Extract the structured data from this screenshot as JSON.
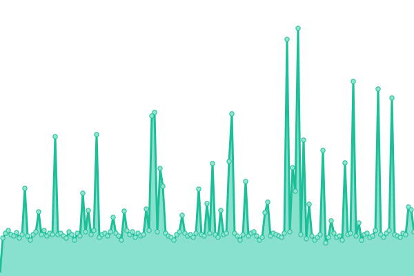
{
  "chart_data": {
    "type": "area",
    "title": "",
    "xlabel": "",
    "ylabel": "",
    "grid": false,
    "legend": "none",
    "ylim": [
      0,
      400
    ],
    "colors": {
      "line": "#1dbf98",
      "fill": "#88e0cd",
      "marker_fill": "#8fe3cf"
    },
    "x": [
      0,
      1,
      2,
      3,
      4,
      5,
      6,
      7,
      8,
      9,
      10,
      11,
      12,
      13,
      14,
      15,
      16,
      17,
      18,
      19,
      20,
      21,
      22,
      23,
      24,
      25,
      26,
      27,
      28,
      29,
      30,
      31,
      32,
      33,
      34,
      35,
      36,
      37,
      38,
      39,
      40,
      41,
      42,
      43,
      44,
      45,
      46,
      47,
      48,
      49,
      50,
      51,
      52,
      53,
      54,
      55,
      56,
      57,
      58,
      59,
      60,
      61,
      62,
      63,
      64,
      65,
      66,
      67,
      68,
      69,
      70,
      71,
      72,
      73,
      74,
      75,
      76,
      77,
      78,
      79,
      80,
      81,
      82,
      83,
      84,
      85,
      86,
      87,
      88,
      89,
      90,
      91,
      92,
      93,
      94,
      95,
      96,
      97,
      98,
      99,
      100,
      101,
      102,
      103,
      104,
      105,
      106,
      107,
      108,
      109,
      110,
      111,
      112,
      113,
      114,
      115,
      116,
      117,
      118,
      119,
      120,
      121,
      122,
      123,
      124,
      125,
      126,
      127,
      128,
      129,
      130,
      131,
      132,
      133,
      134,
      135,
      136,
      137,
      138,
      139,
      140,
      141,
      142,
      143,
      144,
      145,
      146,
      147,
      148,
      149,
      150
    ],
    "values": [
      5,
      55,
      62,
      66,
      60,
      58,
      63,
      55,
      60,
      127,
      58,
      52,
      60,
      64,
      93,
      60,
      66,
      58,
      62,
      60,
      202,
      60,
      62,
      58,
      55,
      64,
      60,
      52,
      62,
      58,
      120,
      64,
      95,
      60,
      66,
      205,
      56,
      60,
      62,
      58,
      64,
      85,
      62,
      58,
      52,
      94,
      66,
      60,
      64,
      56,
      62,
      58,
      60,
      97,
      66,
      232,
      237,
      64,
      156,
      130,
      62,
      58,
      56,
      52,
      60,
      64,
      88,
      62,
      58,
      60,
      56,
      62,
      126,
      60,
      58,
      105,
      62,
      163,
      60,
      56,
      95,
      60,
      62,
      166,
      235,
      62,
      58,
      52,
      60,
      137,
      58,
      62,
      64,
      58,
      52,
      56,
      92,
      107,
      58,
      62,
      60,
      58,
      56,
      62,
      343,
      64,
      157,
      123,
      359,
      60,
      197,
      54,
      104,
      58,
      52,
      56,
      60,
      182,
      48,
      56,
      80,
      62,
      56,
      58,
      52,
      164,
      60,
      62,
      282,
      58,
      77,
      52,
      60,
      62,
      56,
      58,
      66,
      271,
      60,
      56,
      62,
      66,
      258,
      60,
      58,
      56,
      62,
      60,
      100,
      96,
      64
    ]
  }
}
